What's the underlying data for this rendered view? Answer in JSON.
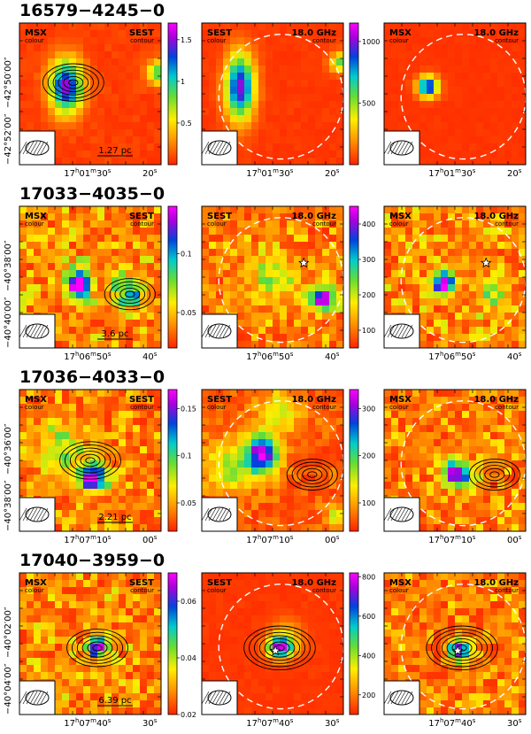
{
  "chart_data": [
    {
      "type": "heatmap",
      "title": "16579−4245−0",
      "dec_ticks": [
        "−42°50′00″",
        "−42°52′00″"
      ],
      "ra_ticks": [
        {
          "h": "17",
          "m": "01",
          "s": "30"
        },
        {
          "s": "20"
        }
      ],
      "scale_bar": "1.27 pc",
      "panels": [
        {
          "name": "MSX/SEST",
          "left_label": "MSX",
          "left_sub": "colour",
          "right_label": "SEST",
          "right_sub": "contour",
          "colorbar": {
            "ticks": [
              "1.5",
              "1",
              "0.5"
            ],
            "range": [
              0,
              1.7
            ]
          },
          "contours": {
            "cx": 0.38,
            "cy": 0.42,
            "levels": 6
          },
          "peak": {
            "x": 0.33,
            "y": 0.45,
            "value": 1.0
          }
        },
        {
          "name": "SEST/18.0GHz",
          "left_label": "SEST",
          "left_sub": "colour",
          "right_label": "18.0 GHz",
          "right_sub": "contour",
          "colorbar": {
            "ticks": [
              "1000",
              "500"
            ],
            "range": [
              0,
              1150
            ]
          },
          "peak": {
            "x": 0.27,
            "y": 0.45,
            "value": 900
          }
        },
        {
          "name": "MSX/18.0GHz",
          "left_label": "MSX",
          "left_sub": "colour",
          "right_label": "18.0 GHz",
          "right_sub": "contour",
          "peak": {
            "x": 0.31,
            "y": 0.45,
            "value": 1.0
          }
        }
      ]
    },
    {
      "type": "heatmap",
      "title": "17033−4035−0",
      "dec_ticks": [
        "−40°38′00″",
        "−40°40′00″"
      ],
      "ra_ticks": [
        {
          "h": "17",
          "m": "06",
          "s": "50"
        },
        {
          "s": "40"
        }
      ],
      "scale_bar": "3.6 pc",
      "panels": [
        {
          "name": "MSX/SEST",
          "left_label": "MSX",
          "left_sub": "colour",
          "right_label": "SEST",
          "right_sub": "contour",
          "colorbar": {
            "ticks": [
              "0.1",
              "0.05"
            ],
            "range": [
              0.02,
              0.14
            ]
          },
          "contours": {
            "cx": 0.78,
            "cy": 0.62,
            "levels": 5
          },
          "peak": {
            "x": 0.42,
            "y": 0.55,
            "value": 0.1
          }
        },
        {
          "name": "SEST/18.0GHz",
          "left_label": "SEST",
          "left_sub": "colour",
          "right_label": "18.0 GHz",
          "right_sub": "contour",
          "colorbar": {
            "ticks": [
              "400",
              "300",
              "200",
              "100"
            ],
            "range": [
              50,
              450
            ]
          },
          "peak": {
            "x": 0.85,
            "y": 0.65,
            "value": 250
          }
        },
        {
          "name": "MSX/18.0GHz",
          "left_label": "MSX",
          "left_sub": "colour",
          "right_label": "18.0 GHz",
          "right_sub": "contour",
          "peak": {
            "x": 0.42,
            "y": 0.55,
            "value": 0.1
          }
        }
      ]
    },
    {
      "type": "heatmap",
      "title": "17036−4033−0",
      "dec_ticks": [
        "−40°36′00″",
        "−40°38′00″"
      ],
      "ra_ticks": [
        {
          "h": "17",
          "m": "07",
          "s": "10"
        },
        {
          "s": "00"
        }
      ],
      "scale_bar": "2.21 pc",
      "panels": [
        {
          "name": "MSX/SEST",
          "left_label": "MSX",
          "left_sub": "colour",
          "right_label": "SEST",
          "right_sub": "contour",
          "colorbar": {
            "ticks": [
              "0.15",
              "0.1",
              "0.05"
            ],
            "range": [
              0.02,
              0.17
            ]
          },
          "contours": {
            "cx": 0.5,
            "cy": 0.5,
            "levels": 6
          },
          "peak": {
            "x": 0.52,
            "y": 0.62,
            "value": 0.1
          }
        },
        {
          "name": "SEST/18.0GHz",
          "left_label": "SEST",
          "left_sub": "colour",
          "right_label": "18.0 GHz",
          "right_sub": "contour",
          "colorbar": {
            "ticks": [
              "300",
              "200",
              "100"
            ],
            "range": [
              40,
              340
            ]
          },
          "contours": {
            "cx": 0.78,
            "cy": 0.6,
            "levels": 5
          },
          "peak": {
            "x": 0.43,
            "y": 0.45,
            "value": 220
          }
        },
        {
          "name": "MSX/18.0GHz",
          "left_label": "MSX",
          "left_sub": "colour",
          "right_label": "18.0 GHz",
          "right_sub": "contour",
          "contours": {
            "cx": 0.78,
            "cy": 0.6,
            "levels": 5
          },
          "peak": {
            "x": 0.52,
            "y": 0.6,
            "value": 0.1
          }
        }
      ]
    },
    {
      "type": "heatmap",
      "title": "17040−3959−0",
      "dec_ticks": [
        "−40°02′00″",
        "−40°04′00″"
      ],
      "ra_ticks": [
        {
          "h": "17",
          "m": "07",
          "s": "40"
        },
        {
          "s": "30"
        }
      ],
      "scale_bar": "6.39 pc",
      "panels": [
        {
          "name": "MSX/SEST",
          "left_label": "MSX",
          "left_sub": "colour",
          "right_label": "SEST",
          "right_sub": "contour",
          "colorbar": {
            "ticks": [
              "0.06",
              "0.04",
              "0.02"
            ],
            "range": [
              0.02,
              0.07
            ]
          },
          "contours": {
            "cx": 0.55,
            "cy": 0.53,
            "levels": 6
          },
          "peak": {
            "x": 0.55,
            "y": 0.52,
            "value": 0.05
          }
        },
        {
          "name": "SEST/18.0GHz",
          "left_label": "SEST",
          "left_sub": "colour",
          "right_label": "18.0 GHz",
          "right_sub": "contour",
          "colorbar": {
            "ticks": [
              "800",
              "600",
              "400",
              "200"
            ],
            "range": [
              100,
              820
            ]
          },
          "contours": {
            "cx": 0.55,
            "cy": 0.53,
            "levels": 7
          },
          "peak": {
            "x": 0.55,
            "y": 0.53,
            "value": 700
          }
        },
        {
          "name": "MSX/18.0GHz",
          "left_label": "MSX",
          "left_sub": "colour",
          "right_label": "18.0 GHz",
          "right_sub": "contour",
          "contours": {
            "cx": 0.55,
            "cy": 0.53,
            "levels": 7
          },
          "peak": {
            "x": 0.53,
            "y": 0.55,
            "value": 0.05
          }
        }
      ]
    }
  ]
}
